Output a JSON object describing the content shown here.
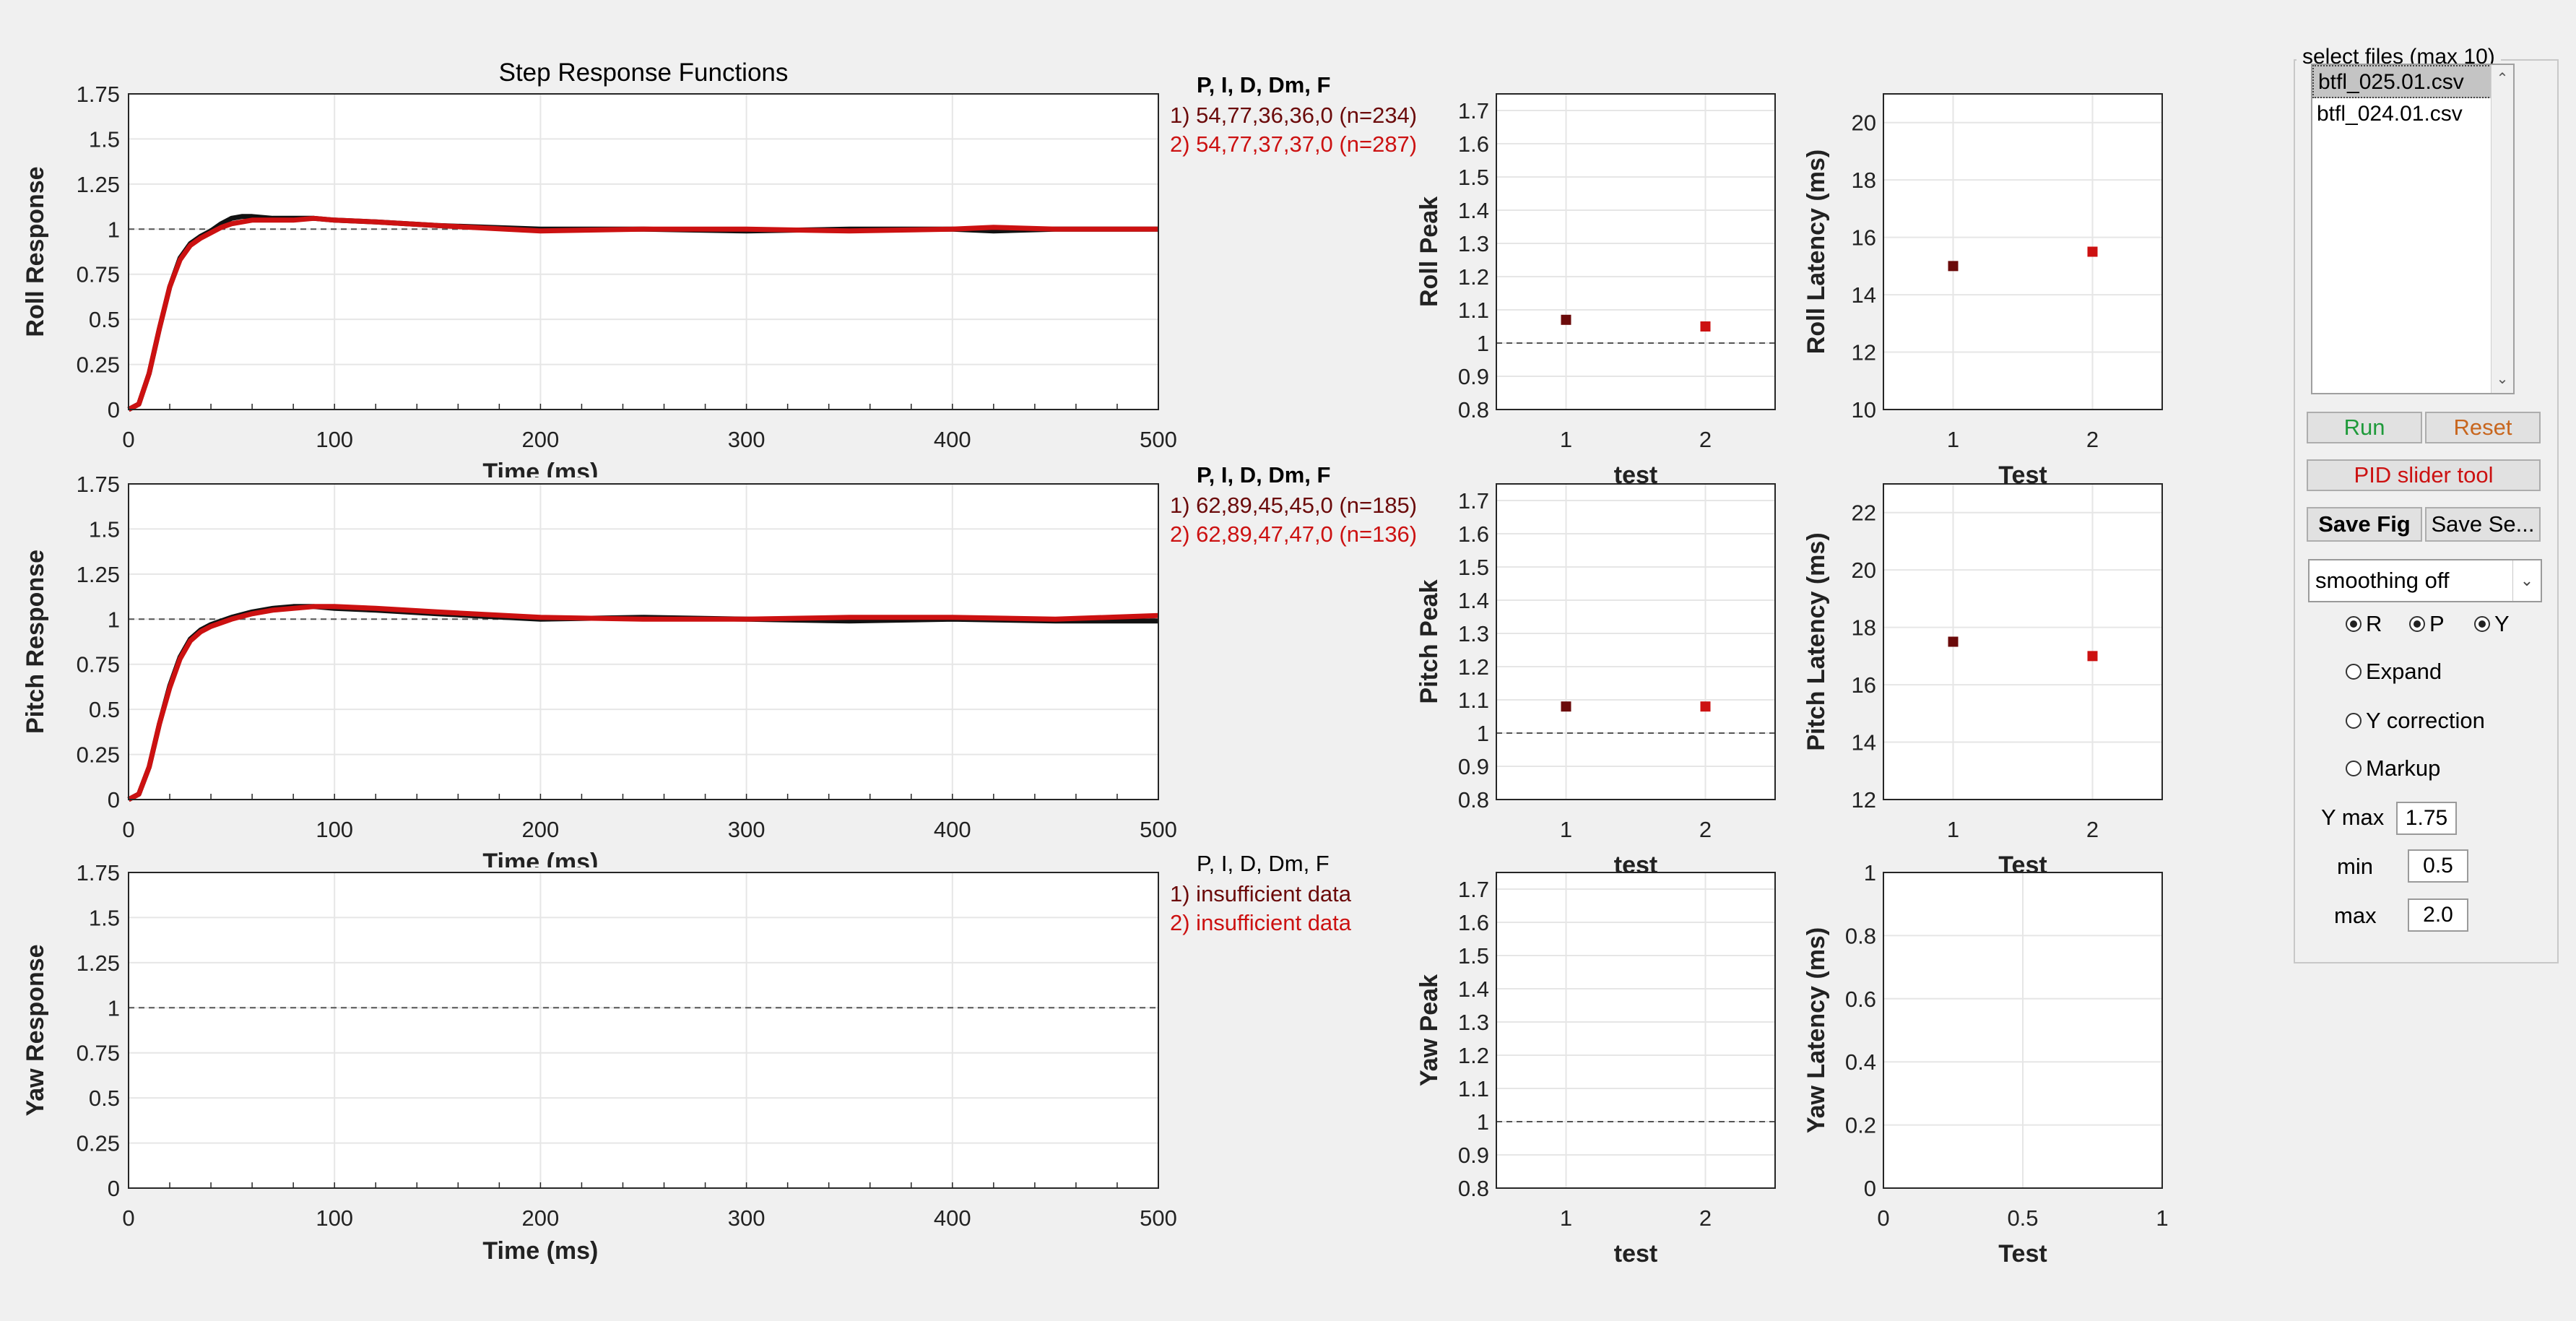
{
  "colors": {
    "background": "#f0f0f0",
    "series1": "#6b0a0a",
    "series2": "#cc1111",
    "dark_line": "#000000",
    "run": "#1e9a3a",
    "reset": "#c8661e",
    "pid": "#cc1111"
  },
  "step_title": "Step Response Functions",
  "time_axis": {
    "ticks": [
      "0",
      "100",
      "200",
      "300",
      "400",
      "500"
    ],
    "xlabel": "Time (ms)",
    "xlim": [
      0,
      500
    ]
  },
  "response_yticks": [
    "0",
    "0.25",
    "0.5",
    "0.75",
    "1",
    "1.25",
    "1.5",
    "1.75"
  ],
  "peak_yticks": [
    "0.8",
    "0.9",
    "1",
    "1.1",
    "1.2",
    "1.3",
    "1.4",
    "1.5",
    "1.6",
    "1.7"
  ],
  "rows": [
    {
      "key": "roll",
      "ylabel": "Roll Response",
      "xlabel_clipped": "Time (ms)",
      "legend_header": "P, I, D, Dm, F",
      "legend_header_bold": true,
      "legend": [
        "1) 54,77,36,36,0  (n=234)",
        "2) 54,77,37,37,0  (n=287)"
      ],
      "peak": {
        "ylabel": "Roll Peak",
        "xlabel": "test",
        "xticks": [
          "1",
          "2"
        ],
        "values": [
          1.07,
          1.05
        ]
      },
      "latency": {
        "ylabel": "Roll Latency (ms)",
        "xlabel": "Test",
        "xticks": [
          "1",
          "2"
        ],
        "yticks": [
          "10",
          "12",
          "14",
          "16",
          "18",
          "20"
        ],
        "ylim": [
          10,
          21
        ],
        "values": [
          15.0,
          15.5
        ]
      }
    },
    {
      "key": "pitch",
      "ylabel": "Pitch Response",
      "xlabel_clipped": "Time (ms)",
      "legend_header": "P, I, D, Dm, F",
      "legend_header_bold": true,
      "legend": [
        "1) 62,89,45,45,0  (n=185)",
        "2) 62,89,47,47,0  (n=136)"
      ],
      "peak": {
        "ylabel": "Pitch Peak",
        "xlabel": "test",
        "xticks": [
          "1",
          "2"
        ],
        "values": [
          1.08,
          1.08
        ]
      },
      "latency": {
        "ylabel": "Pitch Latency (ms)",
        "xlabel": "Test",
        "xticks": [
          "1",
          "2"
        ],
        "yticks": [
          "12",
          "14",
          "16",
          "18",
          "20",
          "22"
        ],
        "ylim": [
          12,
          23
        ],
        "values": [
          17.5,
          17.0
        ]
      }
    },
    {
      "key": "yaw",
      "ylabel": "Yaw Response",
      "xlabel": "Time (ms)",
      "legend_header": "P, I, D, Dm, F",
      "legend_header_bold": false,
      "legend": [
        "1) insufficient data",
        "2) insufficient data"
      ],
      "peak": {
        "ylabel": "Yaw Peak",
        "xlabel": "test",
        "xticks": [
          "1",
          "2"
        ],
        "values": []
      },
      "latency": {
        "ylabel": "Yaw Latency (ms)",
        "xlabel": "Test",
        "xticks": [
          "0",
          "0.5",
          "1"
        ],
        "yticks": [
          "0",
          "0.2",
          "0.4",
          "0.6",
          "0.8",
          "1"
        ],
        "ylim": [
          0,
          1
        ],
        "values": []
      }
    }
  ],
  "chart_data": [
    {
      "type": "line",
      "title": "Step Response Functions",
      "ylabel": "Roll Response",
      "xlabel": "Time (ms)",
      "xlim": [
        0,
        500
      ],
      "ylim": [
        0,
        1.75
      ],
      "grid": true,
      "series": [
        {
          "name": "1) 54,77,36,36,0  (n=234)",
          "x": [
            0,
            5,
            10,
            15,
            20,
            25,
            30,
            35,
            40,
            45,
            50,
            55,
            60,
            70,
            80,
            90,
            100,
            120,
            150,
            200,
            250,
            300,
            350,
            400,
            420,
            450,
            500
          ],
          "y": [
            0,
            0.03,
            0.2,
            0.45,
            0.68,
            0.84,
            0.92,
            0.96,
            0.99,
            1.03,
            1.06,
            1.07,
            1.07,
            1.06,
            1.06,
            1.06,
            1.05,
            1.04,
            1.02,
            1.0,
            1.0,
            0.99,
            1.0,
            1.0,
            0.99,
            1.0,
            1.0
          ]
        },
        {
          "name": "2) 54,77,37,37,0  (n=287)",
          "x": [
            0,
            5,
            10,
            15,
            20,
            25,
            30,
            35,
            40,
            45,
            50,
            55,
            60,
            70,
            80,
            90,
            100,
            120,
            150,
            200,
            250,
            300,
            350,
            400,
            420,
            450,
            500
          ],
          "y": [
            0,
            0.03,
            0.2,
            0.45,
            0.68,
            0.83,
            0.91,
            0.95,
            0.98,
            1.01,
            1.03,
            1.04,
            1.05,
            1.05,
            1.05,
            1.06,
            1.05,
            1.04,
            1.02,
            0.99,
            1.0,
            1.0,
            0.99,
            1.0,
            1.01,
            1.0,
            1.0
          ]
        }
      ]
    },
    {
      "type": "line",
      "ylabel": "Pitch Response",
      "xlabel": "Time (ms)",
      "xlim": [
        0,
        500
      ],
      "ylim": [
        0,
        1.75
      ],
      "grid": true,
      "series": [
        {
          "name": "1) 62,89,45,45,0  (n=185)",
          "x": [
            0,
            5,
            10,
            15,
            20,
            25,
            30,
            35,
            40,
            50,
            60,
            70,
            80,
            90,
            100,
            120,
            150,
            200,
            250,
            300,
            350,
            400,
            450,
            500
          ],
          "y": [
            0,
            0.03,
            0.18,
            0.42,
            0.63,
            0.79,
            0.89,
            0.94,
            0.97,
            1.01,
            1.04,
            1.06,
            1.07,
            1.07,
            1.06,
            1.05,
            1.03,
            1.0,
            1.01,
            1.0,
            0.99,
            1.0,
            0.99,
            0.99
          ]
        },
        {
          "name": "2) 62,89,47,47,0  (n=136)",
          "x": [
            0,
            5,
            10,
            15,
            20,
            25,
            30,
            35,
            40,
            50,
            60,
            70,
            80,
            90,
            100,
            120,
            150,
            200,
            250,
            300,
            350,
            400,
            450,
            500
          ],
          "y": [
            0,
            0.03,
            0.18,
            0.42,
            0.62,
            0.78,
            0.88,
            0.93,
            0.96,
            1.0,
            1.03,
            1.05,
            1.06,
            1.07,
            1.07,
            1.06,
            1.04,
            1.01,
            1.0,
            1.0,
            1.01,
            1.01,
            1.0,
            1.02
          ]
        }
      ]
    },
    {
      "type": "line",
      "ylabel": "Yaw Response",
      "xlabel": "Time (ms)",
      "xlim": [
        0,
        500
      ],
      "ylim": [
        0,
        1.75
      ],
      "grid": true,
      "series": []
    },
    {
      "type": "scatter",
      "ylabel": "Roll Peak",
      "xlabel": "test",
      "x": [
        1,
        2
      ],
      "y": [
        1.07,
        1.05
      ],
      "ylim": [
        0.8,
        1.75
      ]
    },
    {
      "type": "scatter",
      "ylabel": "Roll Latency (ms)",
      "xlabel": "Test",
      "x": [
        1,
        2
      ],
      "y": [
        15.0,
        15.5
      ],
      "ylim": [
        10,
        21
      ]
    },
    {
      "type": "scatter",
      "ylabel": "Pitch Peak",
      "xlabel": "test",
      "x": [
        1,
        2
      ],
      "y": [
        1.08,
        1.08
      ],
      "ylim": [
        0.8,
        1.75
      ]
    },
    {
      "type": "scatter",
      "ylabel": "Pitch Latency (ms)",
      "xlabel": "Test",
      "x": [
        1,
        2
      ],
      "y": [
        17.5,
        17.0
      ],
      "ylim": [
        12,
        23
      ]
    },
    {
      "type": "scatter",
      "ylabel": "Yaw Peak",
      "xlabel": "test",
      "x": [],
      "y": [],
      "ylim": [
        0.8,
        1.75
      ]
    },
    {
      "type": "scatter",
      "ylabel": "Yaw Latency (ms)",
      "xlabel": "Test",
      "x": [],
      "y": [],
      "xlim": [
        0,
        1
      ],
      "ylim": [
        0,
        1
      ]
    }
  ],
  "controls": {
    "files_title": "select files (max 10)",
    "files": [
      "btfl_025.01.csv",
      "btfl_024.01.csv"
    ],
    "selected_file_index": 0,
    "run_label": "Run",
    "reset_label": "Reset",
    "pid_label": "PID slider tool",
    "save_fig_label": "Save Fig",
    "save_settings_label": "Save Se...",
    "smoothing_value": "smoothing off",
    "radio_r": "R",
    "radio_p": "P",
    "radio_y": "Y",
    "expand_label": "Expand",
    "ycorr_label": "Y correction",
    "markup_label": "Markup",
    "ymax_label": "Y max",
    "ymax_value": "1.75",
    "min_label": "min",
    "min_value": "0.5",
    "max_label": "max",
    "max_value": "2.0"
  }
}
